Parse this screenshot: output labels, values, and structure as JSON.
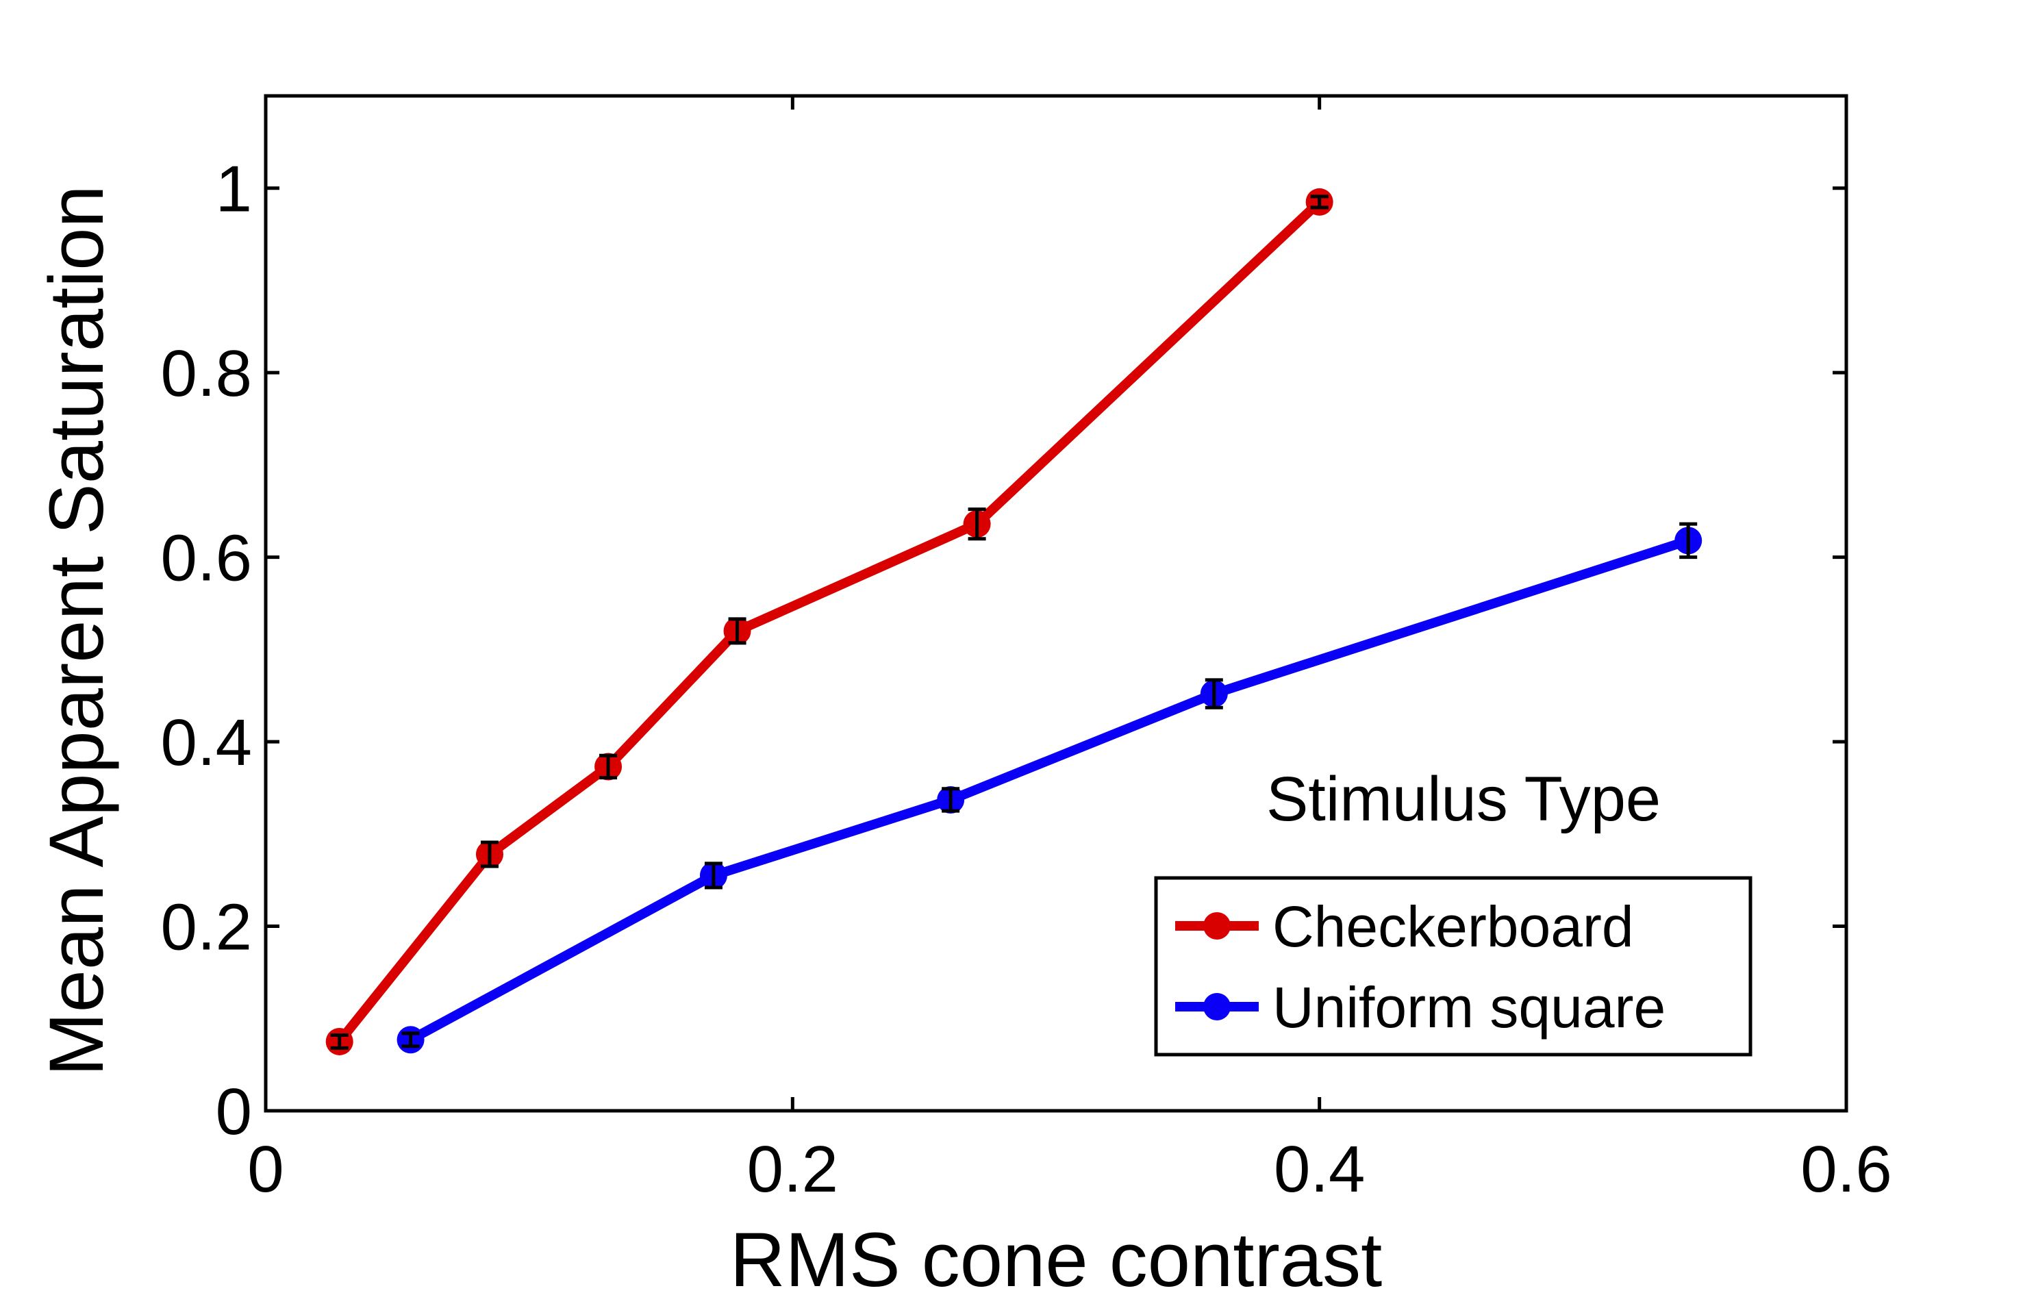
{
  "chart_data": {
    "type": "line",
    "xlabel": "RMS cone contrast",
    "ylabel": "Mean Apparent Saturation",
    "xlim": [
      0,
      0.6
    ],
    "ylim": [
      0,
      1.1
    ],
    "xticks": [
      0,
      0.2,
      0.4,
      0.6
    ],
    "xtick_labels": [
      "0",
      "0.2",
      "0.4",
      "0.6"
    ],
    "yticks": [
      0,
      0.2,
      0.4,
      0.6,
      0.8,
      1.0
    ],
    "ytick_labels": [
      "0",
      "0.2",
      "0.4",
      "0.6",
      "0.8",
      "1"
    ],
    "grid": false,
    "legend": {
      "title": "Stimulus Type",
      "placement": "lower-right"
    },
    "series": [
      {
        "name": "Checkerboard",
        "color": "#d90000",
        "marker": "circle",
        "x": [
          0.028,
          0.085,
          0.13,
          0.179,
          0.27,
          0.4
        ],
        "y": [
          0.075,
          0.278,
          0.373,
          0.52,
          0.636,
          0.985
        ],
        "err": [
          0.007,
          0.013,
          0.012,
          0.013,
          0.016,
          0.006
        ]
      },
      {
        "name": "Uniform square",
        "color": "#0a00f5",
        "marker": "circle",
        "x": [
          0.055,
          0.17,
          0.26,
          0.36,
          0.54
        ],
        "y": [
          0.077,
          0.255,
          0.337,
          0.452,
          0.618
        ],
        "err": [
          0.007,
          0.013,
          0.012,
          0.015,
          0.018
        ]
      }
    ]
  }
}
